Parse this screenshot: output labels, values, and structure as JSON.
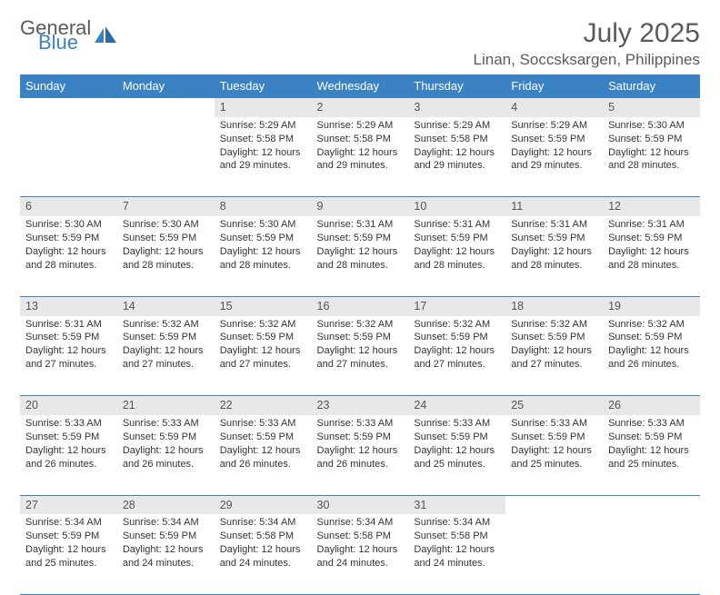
{
  "logo": {
    "general": "General",
    "blue": "Blue"
  },
  "title": "July 2025",
  "location": "Linan, Soccsksargen, Philippines",
  "colors": {
    "accent": "#3b82c4",
    "day_bg": "#e8e8e8",
    "text": "#333333",
    "header_text": "#5a5a5a"
  },
  "daysOfWeek": [
    "Sunday",
    "Monday",
    "Tuesday",
    "Wednesday",
    "Thursday",
    "Friday",
    "Saturday"
  ],
  "weeks": [
    [
      null,
      null,
      {
        "n": "1",
        "sr": "Sunrise: 5:29 AM",
        "ss": "Sunset: 5:58 PM",
        "dl": "Daylight: 12 hours and 29 minutes."
      },
      {
        "n": "2",
        "sr": "Sunrise: 5:29 AM",
        "ss": "Sunset: 5:58 PM",
        "dl": "Daylight: 12 hours and 29 minutes."
      },
      {
        "n": "3",
        "sr": "Sunrise: 5:29 AM",
        "ss": "Sunset: 5:58 PM",
        "dl": "Daylight: 12 hours and 29 minutes."
      },
      {
        "n": "4",
        "sr": "Sunrise: 5:29 AM",
        "ss": "Sunset: 5:59 PM",
        "dl": "Daylight: 12 hours and 29 minutes."
      },
      {
        "n": "5",
        "sr": "Sunrise: 5:30 AM",
        "ss": "Sunset: 5:59 PM",
        "dl": "Daylight: 12 hours and 28 minutes."
      }
    ],
    [
      {
        "n": "6",
        "sr": "Sunrise: 5:30 AM",
        "ss": "Sunset: 5:59 PM",
        "dl": "Daylight: 12 hours and 28 minutes."
      },
      {
        "n": "7",
        "sr": "Sunrise: 5:30 AM",
        "ss": "Sunset: 5:59 PM",
        "dl": "Daylight: 12 hours and 28 minutes."
      },
      {
        "n": "8",
        "sr": "Sunrise: 5:30 AM",
        "ss": "Sunset: 5:59 PM",
        "dl": "Daylight: 12 hours and 28 minutes."
      },
      {
        "n": "9",
        "sr": "Sunrise: 5:31 AM",
        "ss": "Sunset: 5:59 PM",
        "dl": "Daylight: 12 hours and 28 minutes."
      },
      {
        "n": "10",
        "sr": "Sunrise: 5:31 AM",
        "ss": "Sunset: 5:59 PM",
        "dl": "Daylight: 12 hours and 28 minutes."
      },
      {
        "n": "11",
        "sr": "Sunrise: 5:31 AM",
        "ss": "Sunset: 5:59 PM",
        "dl": "Daylight: 12 hours and 28 minutes."
      },
      {
        "n": "12",
        "sr": "Sunrise: 5:31 AM",
        "ss": "Sunset: 5:59 PM",
        "dl": "Daylight: 12 hours and 28 minutes."
      }
    ],
    [
      {
        "n": "13",
        "sr": "Sunrise: 5:31 AM",
        "ss": "Sunset: 5:59 PM",
        "dl": "Daylight: 12 hours and 27 minutes."
      },
      {
        "n": "14",
        "sr": "Sunrise: 5:32 AM",
        "ss": "Sunset: 5:59 PM",
        "dl": "Daylight: 12 hours and 27 minutes."
      },
      {
        "n": "15",
        "sr": "Sunrise: 5:32 AM",
        "ss": "Sunset: 5:59 PM",
        "dl": "Daylight: 12 hours and 27 minutes."
      },
      {
        "n": "16",
        "sr": "Sunrise: 5:32 AM",
        "ss": "Sunset: 5:59 PM",
        "dl": "Daylight: 12 hours and 27 minutes."
      },
      {
        "n": "17",
        "sr": "Sunrise: 5:32 AM",
        "ss": "Sunset: 5:59 PM",
        "dl": "Daylight: 12 hours and 27 minutes."
      },
      {
        "n": "18",
        "sr": "Sunrise: 5:32 AM",
        "ss": "Sunset: 5:59 PM",
        "dl": "Daylight: 12 hours and 27 minutes."
      },
      {
        "n": "19",
        "sr": "Sunrise: 5:32 AM",
        "ss": "Sunset: 5:59 PM",
        "dl": "Daylight: 12 hours and 26 minutes."
      }
    ],
    [
      {
        "n": "20",
        "sr": "Sunrise: 5:33 AM",
        "ss": "Sunset: 5:59 PM",
        "dl": "Daylight: 12 hours and 26 minutes."
      },
      {
        "n": "21",
        "sr": "Sunrise: 5:33 AM",
        "ss": "Sunset: 5:59 PM",
        "dl": "Daylight: 12 hours and 26 minutes."
      },
      {
        "n": "22",
        "sr": "Sunrise: 5:33 AM",
        "ss": "Sunset: 5:59 PM",
        "dl": "Daylight: 12 hours and 26 minutes."
      },
      {
        "n": "23",
        "sr": "Sunrise: 5:33 AM",
        "ss": "Sunset: 5:59 PM",
        "dl": "Daylight: 12 hours and 26 minutes."
      },
      {
        "n": "24",
        "sr": "Sunrise: 5:33 AM",
        "ss": "Sunset: 5:59 PM",
        "dl": "Daylight: 12 hours and 25 minutes."
      },
      {
        "n": "25",
        "sr": "Sunrise: 5:33 AM",
        "ss": "Sunset: 5:59 PM",
        "dl": "Daylight: 12 hours and 25 minutes."
      },
      {
        "n": "26",
        "sr": "Sunrise: 5:33 AM",
        "ss": "Sunset: 5:59 PM",
        "dl": "Daylight: 12 hours and 25 minutes."
      }
    ],
    [
      {
        "n": "27",
        "sr": "Sunrise: 5:34 AM",
        "ss": "Sunset: 5:59 PM",
        "dl": "Daylight: 12 hours and 25 minutes."
      },
      {
        "n": "28",
        "sr": "Sunrise: 5:34 AM",
        "ss": "Sunset: 5:59 PM",
        "dl": "Daylight: 12 hours and 24 minutes."
      },
      {
        "n": "29",
        "sr": "Sunrise: 5:34 AM",
        "ss": "Sunset: 5:58 PM",
        "dl": "Daylight: 12 hours and 24 minutes."
      },
      {
        "n": "30",
        "sr": "Sunrise: 5:34 AM",
        "ss": "Sunset: 5:58 PM",
        "dl": "Daylight: 12 hours and 24 minutes."
      },
      {
        "n": "31",
        "sr": "Sunrise: 5:34 AM",
        "ss": "Sunset: 5:58 PM",
        "dl": "Daylight: 12 hours and 24 minutes."
      },
      null,
      null
    ]
  ]
}
